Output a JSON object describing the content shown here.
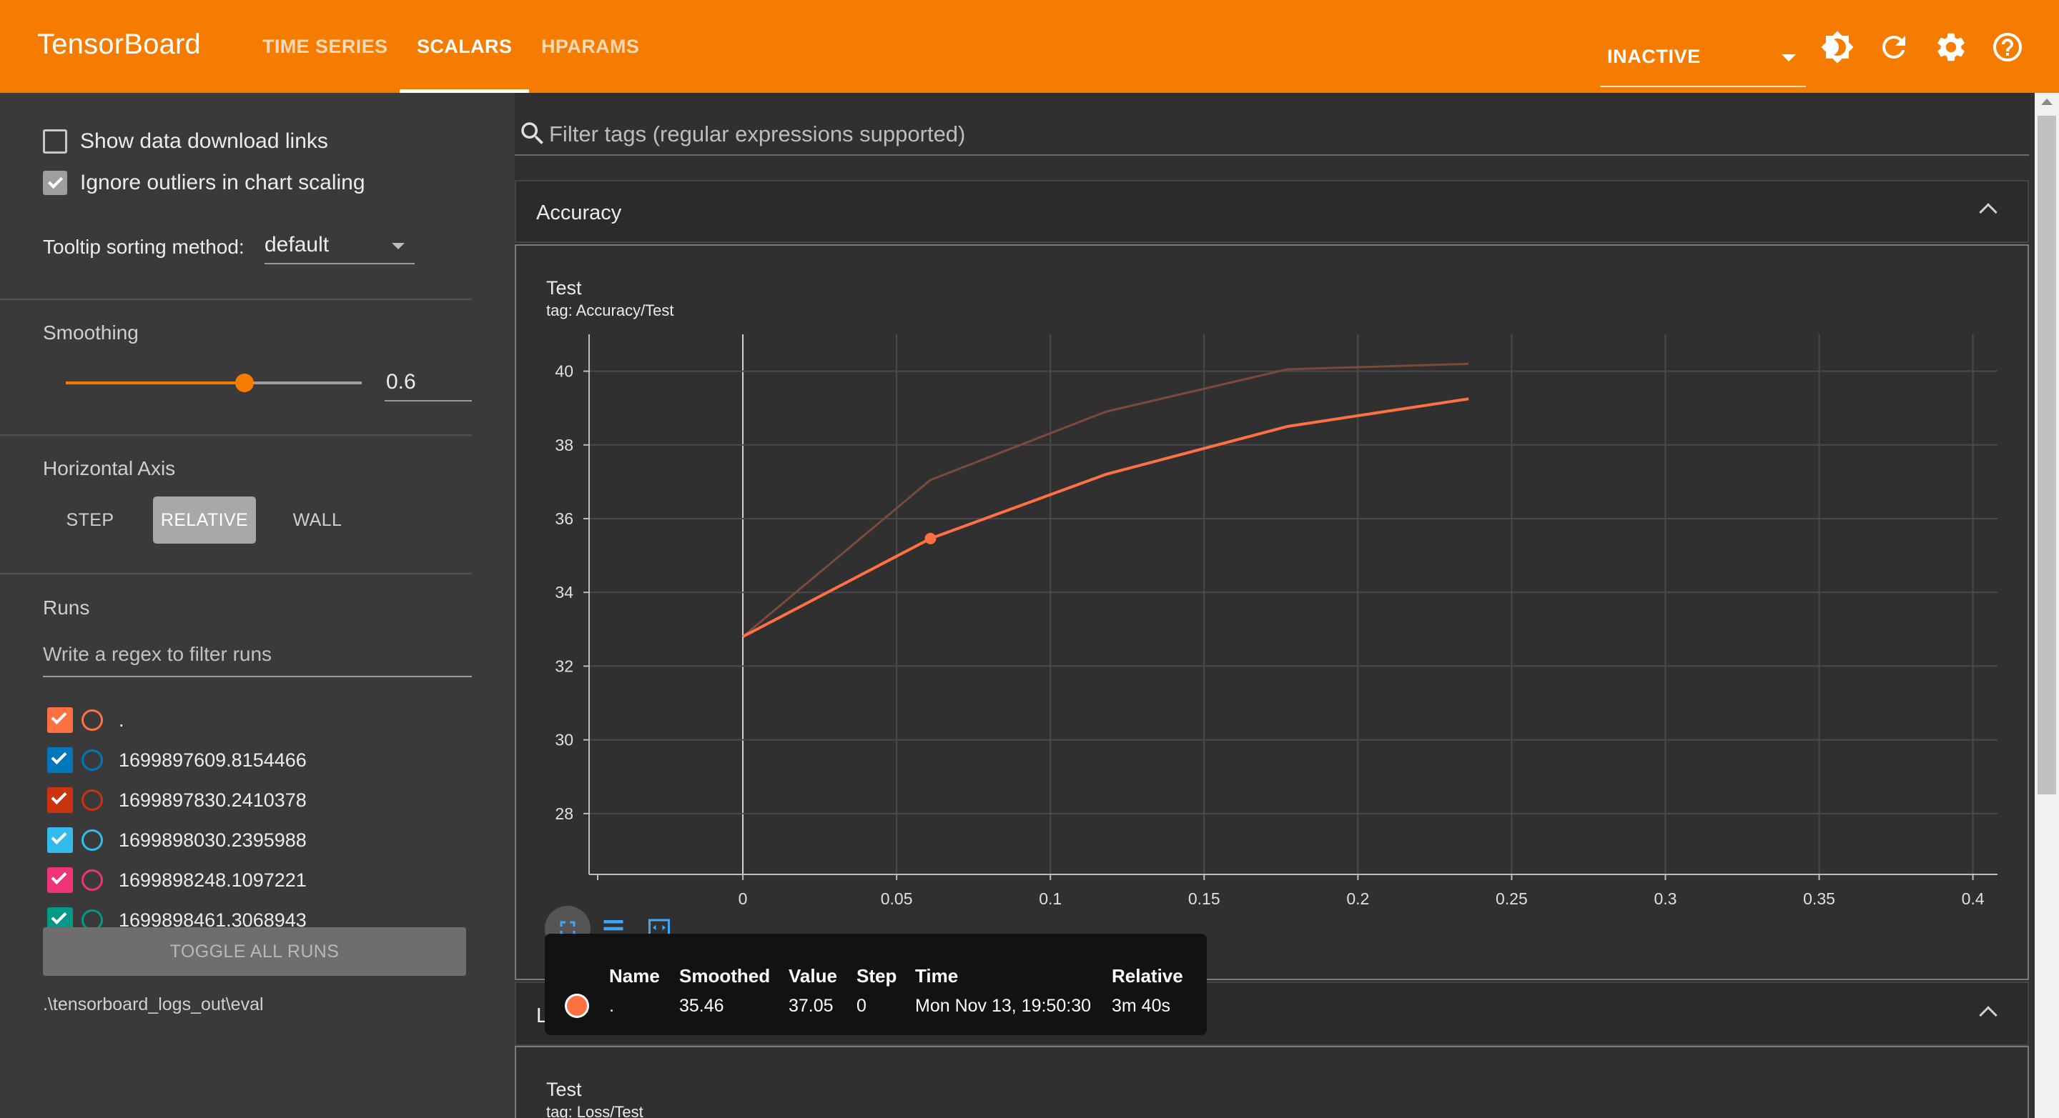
{
  "header": {
    "brand": "TensorBoard",
    "tabs": [
      {
        "label": "TIME SERIES"
      },
      {
        "label": "SCALARS"
      },
      {
        "label": "HPARAMS"
      }
    ],
    "run_status": "INACTIVE",
    "icons": [
      "theme-icon",
      "refresh-icon",
      "settings-icon",
      "help-icon"
    ]
  },
  "sidebar": {
    "show_download_links": "Show data download links",
    "ignore_outliers": "Ignore outliers in chart scaling",
    "tooltip_sort_label": "Tooltip sorting method:",
    "tooltip_sort_value": "default",
    "smoothing_label": "Smoothing",
    "smoothing_value": "0.6",
    "horizontal_axis_label": "Horizontal Axis",
    "axis_options": [
      "STEP",
      "RELATIVE",
      "WALL"
    ],
    "runs_label": "Runs",
    "runs_filter_placeholder": "Write a regex to filter runs",
    "runs": [
      {
        "name": ".",
        "color": "#ff7043"
      },
      {
        "name": "1699897609.8154466",
        "color": "#0077bb"
      },
      {
        "name": "1699897830.2410378",
        "color": "#cc3311"
      },
      {
        "name": "1699898030.2395988",
        "color": "#33bbee"
      },
      {
        "name": "1699898248.1097221",
        "color": "#ee3377"
      },
      {
        "name": "1699898461.3068943",
        "color": "#009988"
      }
    ],
    "toggle_all": "TOGGLE ALL RUNS",
    "log_path": ".\\tensorboard_logs_out\\eval"
  },
  "main": {
    "filter_placeholder": "Filter tags (regular expressions supported)",
    "cards": [
      {
        "title": "Accuracy",
        "chart_title": "Test",
        "chart_tag": "tag: Accuracy/Test"
      },
      {
        "title": "Loss",
        "chart_title": "Test",
        "chart_tag": "tag: Loss/Test"
      }
    ],
    "tooltip": {
      "headers": [
        "Name",
        "Smoothed",
        "Value",
        "Step",
        "Time",
        "Relative"
      ],
      "row": [
        ".",
        "35.46",
        "37.05",
        "0",
        "Mon Nov 13, 19:50:30",
        "3m 40s"
      ]
    }
  },
  "chart_data": {
    "type": "line",
    "xticks": [
      "0",
      "0.05",
      "0.1",
      "0.15",
      "0.2",
      "0.25",
      "0.3",
      "0.35",
      "0.4"
    ],
    "yticks": [
      "28",
      "30",
      "32",
      "34",
      "36",
      "38",
      "40"
    ],
    "xlim": [
      -0.05,
      0.408
    ],
    "ylim": [
      26.35,
      41.0
    ],
    "grid": true,
    "series": [
      {
        "name": ".",
        "role": "raw",
        "color": "#7a4a3a",
        "x": [
          0,
          0.061,
          0.118,
          0.177,
          0.236
        ],
        "y": [
          32.8,
          37.05,
          38.9,
          40.05,
          40.2
        ]
      },
      {
        "name": ".",
        "role": "smoothed",
        "color": "#ff7043",
        "x": [
          0,
          0.061,
          0.118,
          0.177,
          0.236
        ],
        "y": [
          32.8,
          35.46,
          37.2,
          38.5,
          39.25
        ]
      }
    ],
    "highlight": {
      "x": 0.061,
      "y": 35.46
    }
  }
}
